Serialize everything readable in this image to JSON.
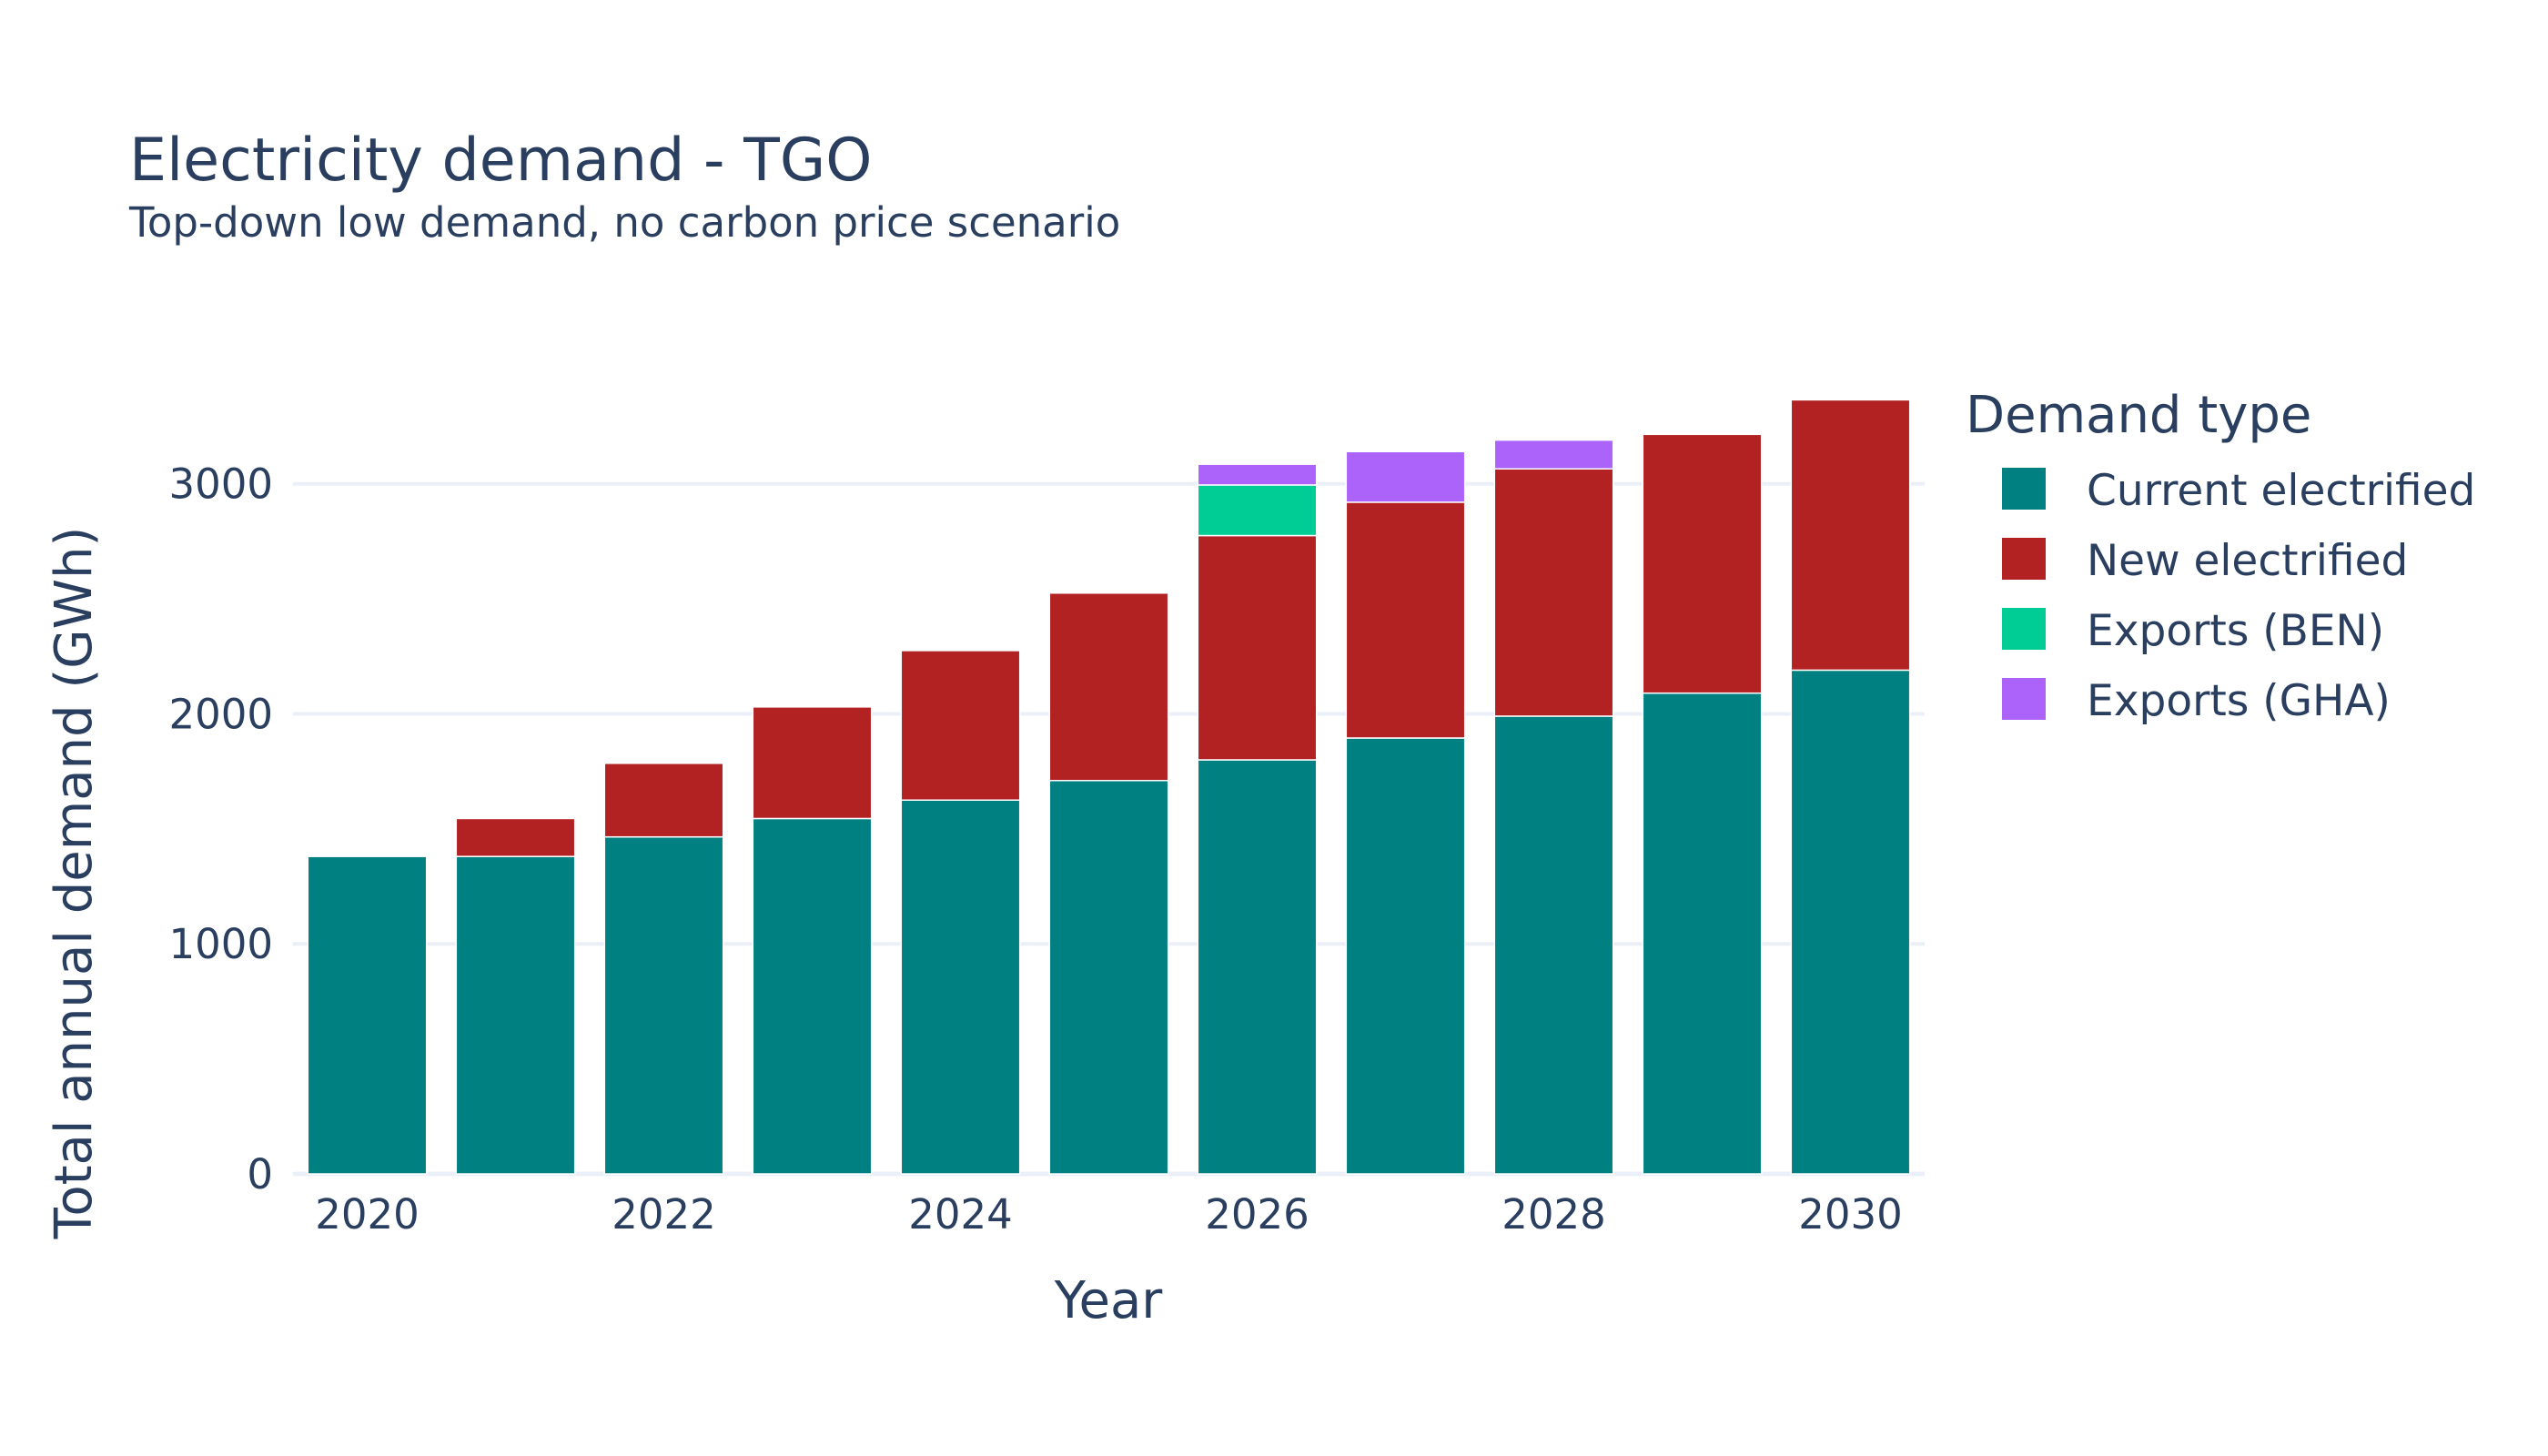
{
  "chart_data": {
    "type": "bar",
    "barmode": "stack",
    "title": "Electricity demand - TGO",
    "subtitle": "Top-down low demand, no carbon price scenario",
    "xlabel": "Year",
    "ylabel": "Total annual demand (GWh)",
    "x": [
      2020,
      2021,
      2022,
      2023,
      2024,
      2025,
      2026,
      2027,
      2028,
      2029,
      2030
    ],
    "x_ticks": [
      "2020",
      "2022",
      "2024",
      "2026",
      "2028",
      "2030"
    ],
    "y_ticks": [
      "0",
      "1000",
      "2000",
      "3000"
    ],
    "ylim": [
      0,
      3600
    ],
    "grid": true,
    "legend": {
      "title": "Demand type",
      "placement": "right"
    },
    "series": [
      {
        "name": "Current electrified",
        "color": "#008080",
        "values": [
          1380,
          1380,
          1465,
          1545,
          1625,
          1710,
          1800,
          1895,
          1990,
          2090,
          2190
        ]
      },
      {
        "name": "New electrified",
        "color": "#b22222",
        "values": [
          0,
          165,
          320,
          485,
          650,
          815,
          975,
          1025,
          1075,
          1125,
          1175
        ]
      },
      {
        "name": "Exports (BEN)",
        "color": "#00cc96",
        "values": [
          0,
          0,
          0,
          0,
          0,
          0,
          220,
          0,
          0,
          0,
          0
        ]
      },
      {
        "name": "Exports (GHA)",
        "color": "#ab63fa",
        "values": [
          0,
          0,
          0,
          0,
          0,
          0,
          90,
          220,
          125,
          0,
          0
        ]
      }
    ]
  }
}
